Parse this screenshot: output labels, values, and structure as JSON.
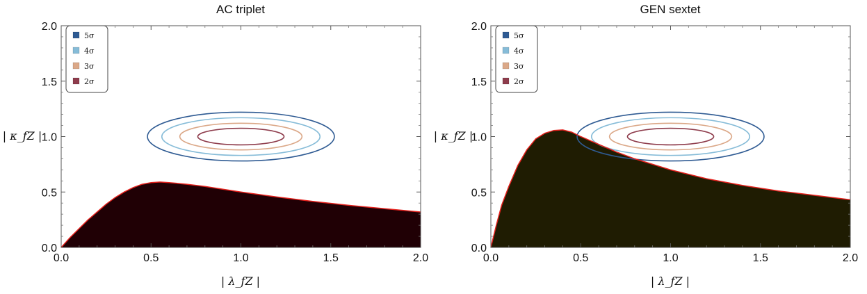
{
  "chart_data": [
    {
      "type": "contour",
      "title": "AC triplet",
      "xlabel": "| λ_fZ |",
      "ylabel": "| κ_fZ |",
      "xlim": [
        0,
        2
      ],
      "ylim": [
        0,
        2
      ],
      "x_ticks": [
        "0.0",
        "0.5",
        "1.0",
        "1.5",
        "2.0"
      ],
      "y_ticks": [
        "0.0",
        "0.5",
        "1.0",
        "1.5",
        "2.0"
      ],
      "legend_position": "top-left",
      "legend": [
        {
          "label": "5σ",
          "color": "#2f5b93"
        },
        {
          "label": "4σ",
          "color": "#86bcd8"
        },
        {
          "label": "3σ",
          "color": "#dba888"
        },
        {
          "label": "2σ",
          "color": "#8e3c4c"
        }
      ],
      "contours": [
        {
          "level": "5σ",
          "center": [
            1.0,
            1.0
          ],
          "half_width_x": 0.52,
          "half_width_y": 0.22
        },
        {
          "level": "4σ",
          "center": [
            1.0,
            1.0
          ],
          "half_width_x": 0.44,
          "half_width_y": 0.17
        },
        {
          "level": "3σ",
          "center": [
            1.0,
            1.0
          ],
          "half_width_x": 0.34,
          "half_width_y": 0.12
        },
        {
          "level": "2σ",
          "center": [
            1.0,
            1.0
          ],
          "half_width_x": 0.24,
          "half_width_y": 0.075
        }
      ],
      "region_fill": "#200005",
      "boundary_color": "#e5201c",
      "boundary": {
        "x": [
          0,
          0.05,
          0.1,
          0.15,
          0.2,
          0.25,
          0.3,
          0.35,
          0.4,
          0.45,
          0.5,
          0.55,
          0.6,
          0.7,
          0.8,
          0.9,
          1.0,
          1.2,
          1.4,
          1.6,
          1.8,
          2.0
        ],
        "y": [
          0,
          0.09,
          0.17,
          0.25,
          0.32,
          0.39,
          0.45,
          0.5,
          0.54,
          0.57,
          0.585,
          0.59,
          0.585,
          0.57,
          0.55,
          0.525,
          0.5,
          0.455,
          0.415,
          0.38,
          0.35,
          0.32
        ]
      }
    },
    {
      "type": "contour",
      "title": "GEN sextet",
      "xlabel": "| λ_fZ |",
      "ylabel": "| κ_fZ |",
      "xlim": [
        0,
        2
      ],
      "ylim": [
        0,
        2
      ],
      "x_ticks": [
        "0.0",
        "0.5",
        "1.0",
        "1.5",
        "2.0"
      ],
      "y_ticks": [
        "0.0",
        "0.5",
        "1.0",
        "1.5",
        "2.0"
      ],
      "legend_position": "top-left",
      "legend": [
        {
          "label": "5σ",
          "color": "#2f5b93"
        },
        {
          "label": "4σ",
          "color": "#86bcd8"
        },
        {
          "label": "3σ",
          "color": "#dba888"
        },
        {
          "label": "2σ",
          "color": "#8e3c4c"
        }
      ],
      "contours": [
        {
          "level": "5σ",
          "center": [
            1.0,
            1.0
          ],
          "half_width_x": 0.52,
          "half_width_y": 0.22
        },
        {
          "level": "4σ",
          "center": [
            1.0,
            1.0
          ],
          "half_width_x": 0.44,
          "half_width_y": 0.17
        },
        {
          "level": "3σ",
          "center": [
            1.0,
            1.0
          ],
          "half_width_x": 0.34,
          "half_width_y": 0.12
        },
        {
          "level": "2σ",
          "center": [
            1.0,
            1.0
          ],
          "half_width_x": 0.24,
          "half_width_y": 0.075
        }
      ],
      "region_fill": "#1f1c02",
      "boundary_color": "#e5201c",
      "boundary": {
        "x": [
          0,
          0.03,
          0.06,
          0.1,
          0.15,
          0.2,
          0.25,
          0.3,
          0.35,
          0.4,
          0.45,
          0.5,
          0.6,
          0.7,
          0.8,
          0.9,
          1.0,
          1.2,
          1.4,
          1.6,
          1.8,
          2.0
        ],
        "y": [
          0,
          0.2,
          0.38,
          0.55,
          0.74,
          0.88,
          0.98,
          1.03,
          1.055,
          1.06,
          1.04,
          1.0,
          0.93,
          0.86,
          0.8,
          0.75,
          0.7,
          0.62,
          0.56,
          0.51,
          0.47,
          0.43
        ]
      }
    }
  ]
}
